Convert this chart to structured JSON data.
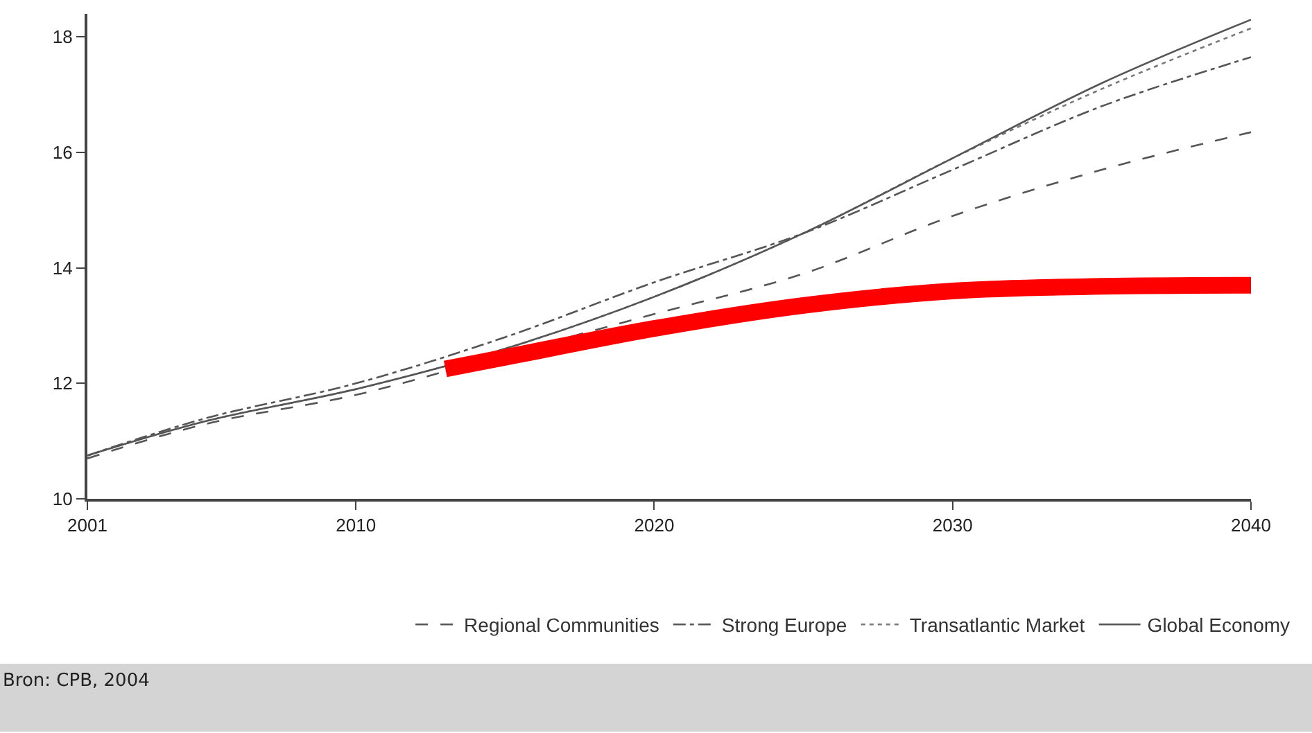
{
  "chart_data": {
    "type": "line",
    "x": [
      2001,
      2005,
      2010,
      2015,
      2020,
      2025,
      2030,
      2035,
      2040
    ],
    "series": [
      {
        "name": "Regional Communities",
        "color": "#555555",
        "line_style": "dashed",
        "values": [
          10.7,
          11.3,
          11.8,
          12.5,
          13.2,
          13.9,
          14.9,
          15.7,
          16.35
        ]
      },
      {
        "name": "Strong Europe",
        "color": "#555555",
        "line_style": "dashdot",
        "values": [
          10.75,
          11.4,
          12.0,
          12.8,
          13.75,
          14.6,
          15.7,
          16.8,
          17.65
        ]
      },
      {
        "name": "Transatlantic Market",
        "color": "#777777",
        "line_style": "dotted",
        "values": [
          10.75,
          11.35,
          11.9,
          12.6,
          13.5,
          14.6,
          15.9,
          17.1,
          18.15
        ]
      },
      {
        "name": "Global Economy",
        "color": "#555555",
        "line_style": "solid",
        "values": [
          10.75,
          11.35,
          11.9,
          12.6,
          13.5,
          14.6,
          15.9,
          17.2,
          18.3
        ]
      },
      {
        "color": "#ff0000",
        "line_style": "solid",
        "x": [
          2013,
          2015,
          2020,
          2025,
          2030,
          2035,
          2040
        ],
        "values": [
          12.25,
          12.45,
          12.95,
          13.35,
          13.6,
          13.68,
          13.7
        ]
      }
    ],
    "xlim": [
      2001,
      2040
    ],
    "xticks": [
      2001,
      2010,
      2020,
      2030,
      2040
    ],
    "ylim": [
      10,
      18.4
    ],
    "yticks": [
      10,
      12,
      14,
      16,
      18
    ],
    "legend": "bottom",
    "marker": "none",
    "annotations": [
      "Bron: CPB, 2004"
    ]
  }
}
